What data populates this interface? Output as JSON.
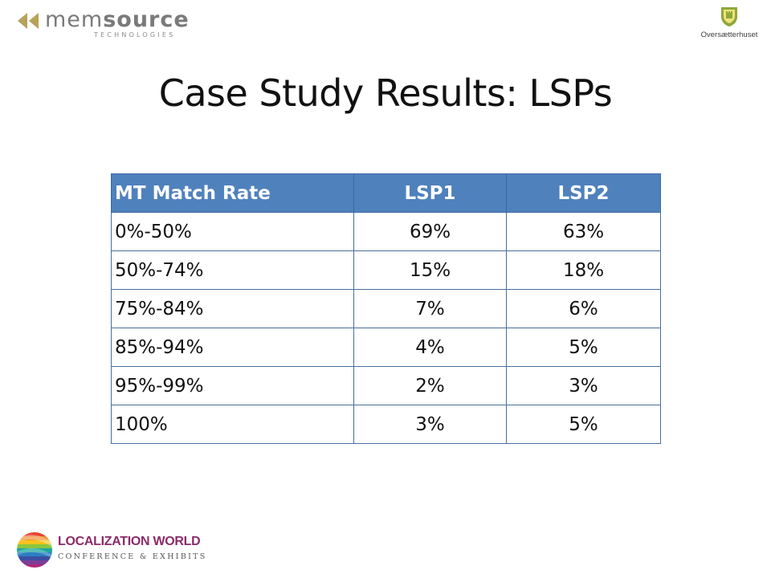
{
  "header": {
    "memsource_logo": {
      "word_part1": "mem",
      "word_part2": "source",
      "tagline": "TECHNOLOGIES",
      "arrow_color": "#b8a15a",
      "icon": "double-arrow-left-icon"
    },
    "partner_logo": {
      "name": "Oversætterhuset",
      "shield_color": "#8da83c",
      "icon": "shield-icon"
    }
  },
  "slide": {
    "title": "Case Study Results: LSPs"
  },
  "table": {
    "header_color": "#4f81bd",
    "columns": [
      "MT Match Rate",
      "LSP1",
      "LSP2"
    ],
    "rows": [
      [
        "0%-50%",
        "69%",
        "63%"
      ],
      [
        "50%-74%",
        "15%",
        "18%"
      ],
      [
        "75%-84%",
        "7%",
        "6%"
      ],
      [
        "85%-94%",
        "4%",
        "5%"
      ],
      [
        "95%-99%",
        "2%",
        "3%"
      ],
      [
        "100%",
        "3%",
        "5%"
      ]
    ]
  },
  "footer": {
    "localization_logo": {
      "name": "LOCALIZATION WORLD",
      "subtitle": "CONFERENCE & EXHIBITS",
      "icon": "striped-globe-icon"
    }
  }
}
